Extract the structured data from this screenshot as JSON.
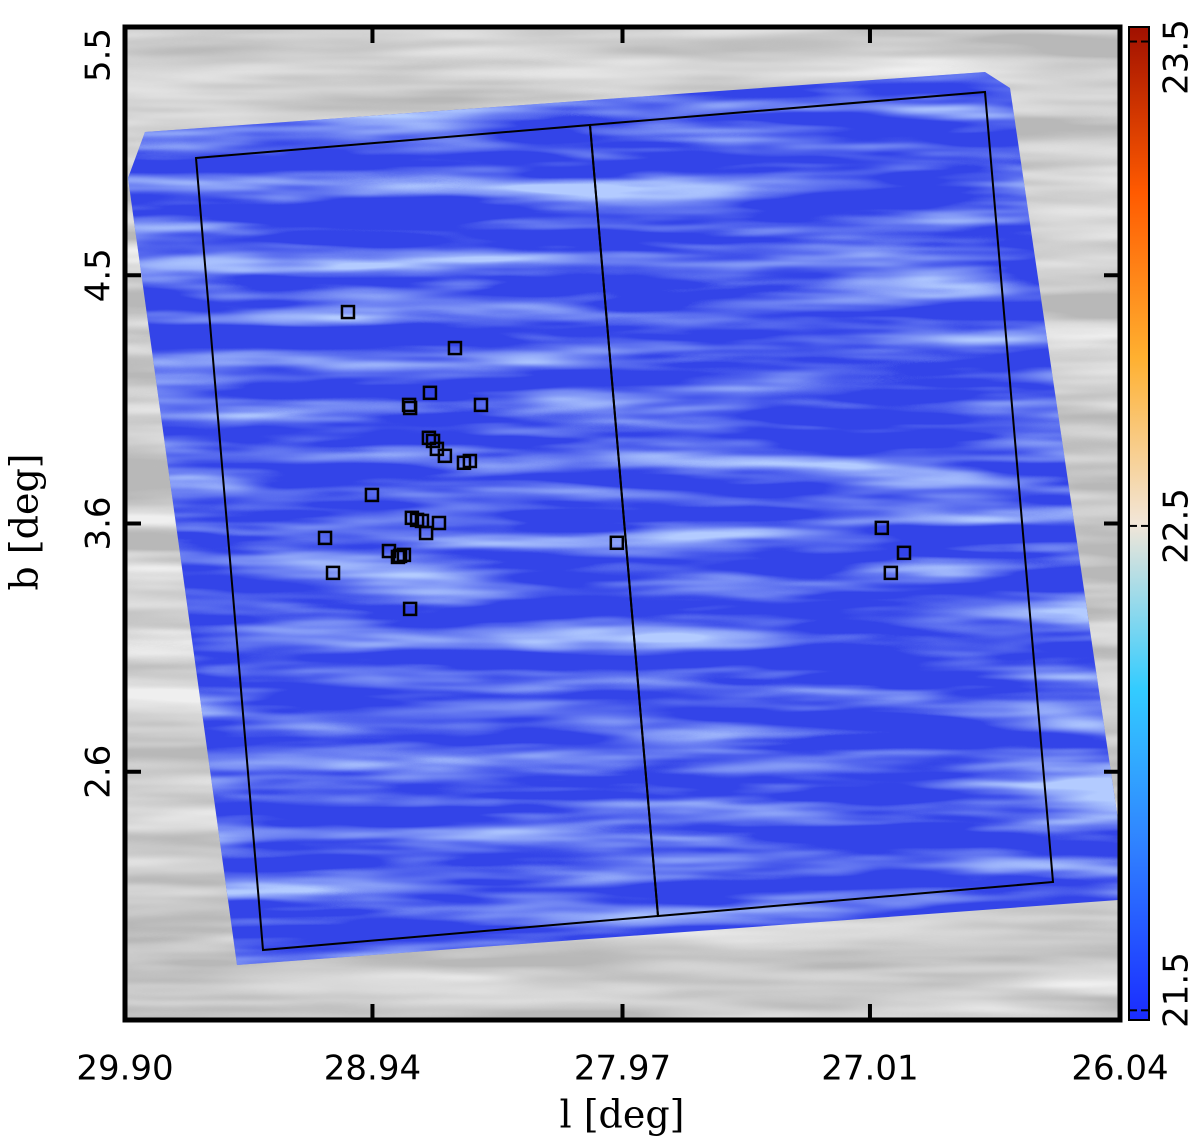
{
  "chart_data": {
    "type": "scatter",
    "xlabel": "l [deg]",
    "ylabel": "b [deg]",
    "x": [
      29.035,
      28.62,
      28.717,
      28.798,
      28.794,
      28.519,
      28.721,
      28.705,
      28.69,
      28.659,
      28.562,
      28.585,
      28.942,
      28.787,
      28.767,
      28.748,
      28.682,
      28.732,
      29.124,
      28.876,
      28.833,
      28.818,
      28.841,
      29.093,
      28.794,
      27.992,
      26.964,
      26.878,
      26.929
    ],
    "values": [
      4.392,
      4.252,
      4.078,
      4.031,
      4.019,
      4.031,
      3.903,
      3.891,
      3.86,
      3.833,
      3.813,
      3.806,
      3.681,
      3.592,
      3.584,
      3.58,
      3.572,
      3.533,
      3.514,
      3.463,
      3.444,
      3.448,
      3.44,
      3.378,
      3.238,
      3.495,
      3.553,
      3.456,
      3.378
    ],
    "color": "#000000",
    "xlim": [
      29.9,
      26.04
    ],
    "xticks": [
      {
        "value": 29.9,
        "label": "29.90"
      },
      28.94,
      27.97,
      27.01,
      26.04
    ],
    "ylim": [
      1.64,
      5.5
    ],
    "yticks": [
      {
        "value": 2.605,
        "label": "2.6"
      },
      {
        "value": 3.57,
        "label": "3.6"
      },
      {
        "value": 4.535,
        "label": "4.5"
      },
      5.5
    ],
    "colorbar": {
      "lim": [
        21.48,
        23.53
      ],
      "ticks": [
        21.5,
        22.5,
        23.5
      ],
      "colormap": [
        "#1a2cff",
        "#2f7dff",
        "#33ccff",
        "#f2e6d8",
        "#ffb030",
        "#ff5a00",
        "#a01000"
      ]
    }
  }
}
